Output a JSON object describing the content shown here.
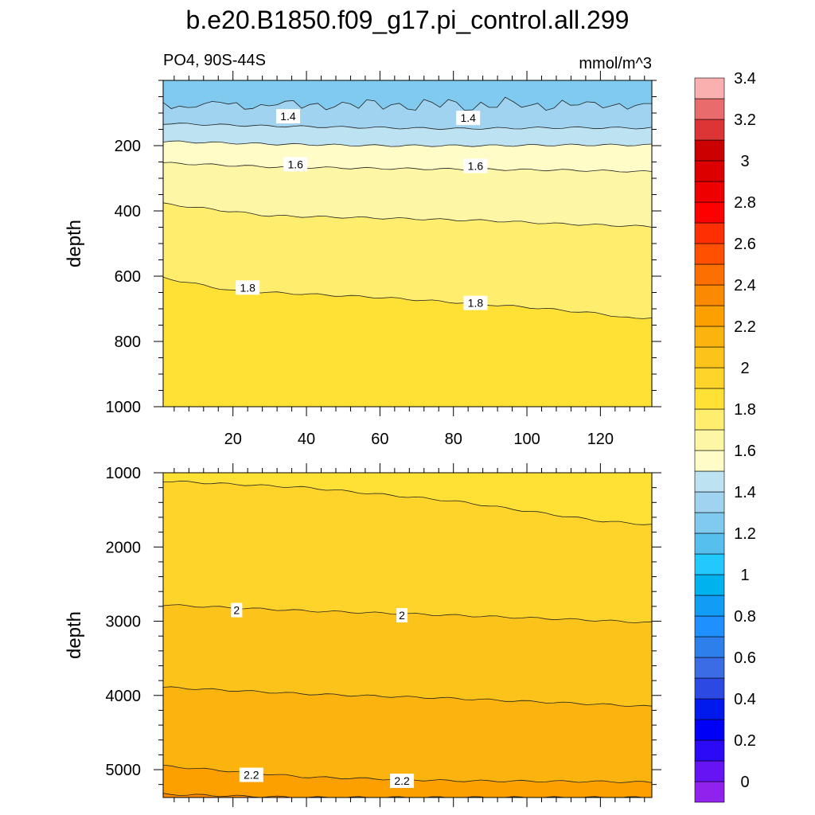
{
  "title": "b.e20.B1850.f09_g17.pi_control.all.299",
  "variable_label": "PO4, 90S-44S",
  "units_label": "mmol/m^3",
  "chart_data": [
    {
      "type": "contour",
      "panel": "upper",
      "ylabel": "depth",
      "xlabel": "",
      "xlim": [
        1,
        134
      ],
      "ylim": [
        1000,
        0
      ],
      "y_reversed": true,
      "x_ticks": [
        "20",
        "40",
        "60",
        "80",
        "100",
        "120"
      ],
      "y_ticks": [
        "200",
        "400",
        "600",
        "800",
        "1000"
      ],
      "contours": [
        {
          "level": 1.3,
          "x": [
            1,
            134
          ],
          "y": [
            75,
            75
          ],
          "rough": true
        },
        {
          "level": 1.4,
          "x": [
            1,
            30,
            60,
            80,
            110,
            134
          ],
          "y": [
            132,
            140,
            145,
            148,
            145,
            146
          ]
        },
        {
          "level": 1.5,
          "x": [
            1,
            30,
            60,
            90,
            110,
            134
          ],
          "y": [
            187,
            195,
            200,
            200,
            198,
            198
          ]
        },
        {
          "level": 1.6,
          "x": [
            1,
            30,
            60,
            90,
            110,
            134
          ],
          "y": [
            253,
            265,
            270,
            273,
            275,
            280
          ]
        },
        {
          "level": 1.7,
          "x": [
            1,
            30,
            60,
            90,
            110,
            134
          ],
          "y": [
            378,
            415,
            422,
            430,
            440,
            448
          ]
        },
        {
          "level": 1.8,
          "x": [
            1,
            20,
            40,
            60,
            80,
            100,
            120,
            130,
            134
          ],
          "y": [
            605,
            645,
            655,
            665,
            680,
            695,
            715,
            732,
            725
          ]
        }
      ],
      "labels": [
        {
          "text": "1.4",
          "x": 35,
          "y": 110
        },
        {
          "text": "1.4",
          "x": 84,
          "y": 115
        },
        {
          "text": "1.6",
          "x": 37,
          "y": 257
        },
        {
          "text": "1.6",
          "x": 86,
          "y": 262
        },
        {
          "text": "1.8",
          "x": 24,
          "y": 635
        },
        {
          "text": "1.8",
          "x": 86,
          "y": 682
        }
      ]
    },
    {
      "type": "contour",
      "panel": "lower",
      "ylabel": "depth",
      "xlabel": "",
      "xlim": [
        1,
        134
      ],
      "ylim": [
        5375,
        1000
      ],
      "y_reversed": true,
      "x_ticks": [],
      "y_ticks": [
        "1000",
        "2000",
        "3000",
        "4000",
        "5000"
      ],
      "contours": [
        {
          "level": 1.9,
          "x": [
            1,
            40,
            80,
            120,
            134
          ],
          "y": [
            1110,
            1200,
            1380,
            1650,
            1700
          ]
        },
        {
          "level": 2.0,
          "x": [
            1,
            40,
            80,
            120,
            134
          ],
          "y": [
            2780,
            2860,
            2920,
            2990,
            3020
          ]
        },
        {
          "level": 2.1,
          "x": [
            1,
            40,
            80,
            120,
            134
          ],
          "y": [
            3890,
            3980,
            4040,
            4120,
            4150
          ]
        },
        {
          "level": 2.2,
          "x": [
            1,
            40,
            80,
            120,
            134
          ],
          "y": [
            4950,
            5100,
            5150,
            5160,
            5170
          ]
        },
        {
          "level": 2.3,
          "x": [
            1,
            20,
            40
          ],
          "y": [
            5330,
            5355,
            5375
          ]
        }
      ],
      "labels": [
        {
          "text": "2",
          "x": 21,
          "y": 2850
        },
        {
          "text": "2",
          "x": 66,
          "y": 2920
        },
        {
          "text": "2.2",
          "x": 25,
          "y": 5070
        },
        {
          "text": "2.2",
          "x": 66,
          "y": 5150
        }
      ]
    }
  ],
  "colorbar": {
    "labels": [
      "3.4",
      "3.2",
      "3",
      "2.8",
      "2.6",
      "2.4",
      "2.2",
      "2",
      "1.8",
      "1.6",
      "1.4",
      "1.2",
      "1",
      "0.8",
      "0.6",
      "0.4",
      "0.2",
      "0"
    ],
    "colors": [
      "#8f22ec",
      "#6714f4",
      "#2d0af6",
      "#0000f7",
      "#0019ed",
      "#2d49e4",
      "#3b6be5",
      "#2d7fec",
      "#1e90ff",
      "#119cf5",
      "#00b2ee",
      "#22c9ff",
      "#57bfed",
      "#7fcaee",
      "#a0d3ef",
      "#bde3f3",
      "#fffcc8",
      "#fdf6a4",
      "#ffee6e",
      "#ffe135",
      "#fed32a",
      "#fcc41a",
      "#fbb40e",
      "#fca000",
      "#fc8a00",
      "#fc6f00",
      "#ff5000",
      "#ff2f04",
      "#ff0000",
      "#ef0000",
      "#dc0000",
      "#cb0000",
      "#dd3535",
      "#ea6b6b",
      "#fbb0b0"
    ]
  }
}
